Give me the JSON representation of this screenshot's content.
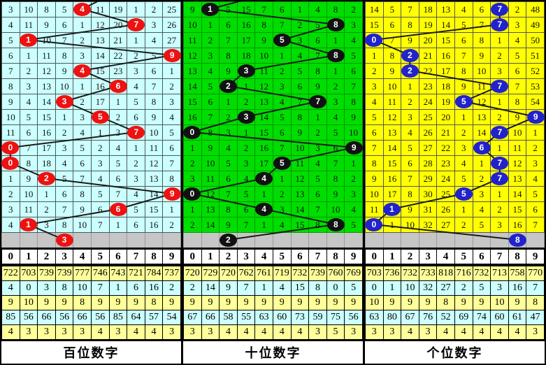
{
  "chart_data": {
    "type": "table",
    "title": "3D lottery digit trend chart (miss-count grid with drawn-digit circles)",
    "columns": [
      "0",
      "1",
      "2",
      "3",
      "4",
      "5",
      "6",
      "7",
      "8",
      "9"
    ],
    "line_color": "#1a1a1a",
    "gray_row_color": "#c6c6c6",
    "stats_row_colors": [
      "#FFFF99",
      "#CCFFFF",
      "#FFFF99",
      "#CCFFFF",
      "#FFFF99"
    ],
    "panels": [
      {
        "title": "百位数字",
        "cell_bg": "#CCFFFF",
        "grid_line": "#4d5a5a",
        "circle_color": "#ee1111",
        "top_entry": {
          "fx": 0.672,
          "fy": -0.05
        },
        "rows": [
          [
            "3",
            "10",
            "8",
            "5",
            null,
            "11",
            "19",
            "1",
            "2",
            "25"
          ],
          [
            "4",
            "11",
            "9",
            "6",
            "1",
            "12",
            "20",
            null,
            "3",
            "26"
          ],
          [
            "5",
            null,
            "10",
            "7",
            "2",
            "13",
            "21",
            "1",
            "4",
            "27"
          ],
          [
            "6",
            "1",
            "11",
            "8",
            "3",
            "14",
            "22",
            "2",
            "5",
            null
          ],
          [
            "7",
            "2",
            "12",
            "9",
            null,
            "15",
            "23",
            "3",
            "6",
            "1"
          ],
          [
            "8",
            "3",
            "13",
            "10",
            "1",
            "16",
            null,
            "4",
            "7",
            "2"
          ],
          [
            "9",
            "4",
            "14",
            null,
            "2",
            "17",
            "1",
            "5",
            "8",
            "3"
          ],
          [
            "10",
            "5",
            "15",
            "1",
            "3",
            null,
            "2",
            "6",
            "9",
            "4"
          ],
          [
            "11",
            "6",
            "16",
            "2",
            "4",
            "1",
            "3",
            null,
            "10",
            "5"
          ],
          [
            null,
            "7",
            "17",
            "3",
            "5",
            "2",
            "4",
            "1",
            "11",
            "6"
          ],
          [
            null,
            "8",
            "18",
            "4",
            "6",
            "3",
            "5",
            "2",
            "12",
            "7"
          ],
          [
            "1",
            "9",
            null,
            "5",
            "7",
            "4",
            "6",
            "3",
            "13",
            "8"
          ],
          [
            "2",
            "10",
            "1",
            "6",
            "8",
            "5",
            "7",
            "4",
            "14",
            null
          ],
          [
            "3",
            "11",
            "2",
            "7",
            "9",
            "6",
            null,
            "5",
            "15",
            "1"
          ],
          [
            "4",
            null,
            "3",
            "8",
            "10",
            "7",
            "1",
            "6",
            "16",
            "2"
          ]
        ],
        "circles": [
          {
            "row": 0,
            "col": 4,
            "label": "4"
          },
          {
            "row": 1,
            "col": 7,
            "label": "7"
          },
          {
            "row": 2,
            "col": 1,
            "label": "1"
          },
          {
            "row": 3,
            "col": 9,
            "label": "9"
          },
          {
            "row": 4,
            "col": 4,
            "label": "4"
          },
          {
            "row": 5,
            "col": 6,
            "label": "6"
          },
          {
            "row": 6,
            "col": 3,
            "label": "3"
          },
          {
            "row": 7,
            "col": 5,
            "label": "5"
          },
          {
            "row": 8,
            "col": 7,
            "label": "7"
          },
          {
            "row": 9,
            "col": 0,
            "label": "0"
          },
          {
            "row": 10,
            "col": 0,
            "label": "0"
          },
          {
            "row": 11,
            "col": 2,
            "label": "2"
          },
          {
            "row": 12,
            "col": 9,
            "label": "9"
          },
          {
            "row": 13,
            "col": 6,
            "label": "6"
          },
          {
            "row": 14,
            "col": 1,
            "label": "1"
          },
          {
            "row": 15,
            "col": 3,
            "label": "3"
          }
        ],
        "stats": [
          [
            "722",
            "703",
            "739",
            "739",
            "777",
            "746",
            "743",
            "721",
            "784",
            "737"
          ],
          [
            "4",
            "0",
            "3",
            "8",
            "10",
            "7",
            "1",
            "6",
            "16",
            "2"
          ],
          [
            "9",
            "10",
            "9",
            "9",
            "8",
            "9",
            "9",
            "9",
            "8",
            "9"
          ],
          [
            "85",
            "56",
            "66",
            "56",
            "66",
            "56",
            "85",
            "64",
            "57",
            "54"
          ],
          [
            "4",
            "3",
            "3",
            "3",
            "3",
            "4",
            "3",
            "4",
            "4",
            "3"
          ]
        ]
      },
      {
        "title": "十位数字",
        "cell_bg": "#00DD00",
        "grid_line": "#009900",
        "circle_color": "#111111",
        "top_entry": {
          "fx": 0.568,
          "fy": -0.05
        },
        "rows": [
          [
            "9",
            null,
            "5",
            "15",
            "7",
            "6",
            "1",
            "4",
            "8",
            "2"
          ],
          [
            "10",
            "1",
            "6",
            "16",
            "8",
            "7",
            "2",
            "5",
            null,
            "3"
          ],
          [
            "11",
            "2",
            "7",
            "17",
            "9",
            null,
            "3",
            "6",
            "1",
            "4"
          ],
          [
            "12",
            "3",
            "8",
            "18",
            "10",
            "1",
            "4",
            "7",
            null,
            "5"
          ],
          [
            "13",
            "4",
            "9",
            null,
            "11",
            "2",
            "5",
            "8",
            "1",
            "6"
          ],
          [
            "14",
            "5",
            null,
            "1",
            "12",
            "3",
            "6",
            "9",
            "2",
            "7"
          ],
          [
            "15",
            "6",
            "1",
            "2",
            "13",
            "4",
            "7",
            null,
            "3",
            "8"
          ],
          [
            "16",
            "7",
            "2",
            null,
            "14",
            "5",
            "8",
            "1",
            "4",
            "9"
          ],
          [
            null,
            "8",
            "3",
            "1",
            "15",
            "6",
            "9",
            "2",
            "5",
            "10"
          ],
          [
            "1",
            "9",
            "4",
            "2",
            "16",
            "7",
            "10",
            "3",
            "6",
            null
          ],
          [
            "2",
            "10",
            "5",
            "3",
            "17",
            null,
            "11",
            "4",
            "7",
            "1"
          ],
          [
            "3",
            "11",
            "6",
            "4",
            null,
            "1",
            "12",
            "5",
            "8",
            "2"
          ],
          [
            null,
            "12",
            "7",
            "5",
            "1",
            "2",
            "13",
            "6",
            "9",
            "3"
          ],
          [
            "1",
            "13",
            "8",
            "6",
            null,
            "3",
            "14",
            "7",
            "10",
            "4"
          ],
          [
            "2",
            "14",
            "9",
            "7",
            "1",
            "4",
            "15",
            "8",
            null,
            "5"
          ]
        ],
        "circles": [
          {
            "row": 0,
            "col": 1,
            "label": "1"
          },
          {
            "row": 1,
            "col": 8,
            "label": "8"
          },
          {
            "row": 2,
            "col": 5,
            "label": "5"
          },
          {
            "row": 3,
            "col": 8,
            "label": "8"
          },
          {
            "row": 4,
            "col": 3,
            "label": "3"
          },
          {
            "row": 5,
            "col": 2,
            "label": "2"
          },
          {
            "row": 6,
            "col": 7,
            "label": "7"
          },
          {
            "row": 7,
            "col": 3,
            "label": "3"
          },
          {
            "row": 8,
            "col": 0,
            "label": "0"
          },
          {
            "row": 9,
            "col": 9,
            "label": "9"
          },
          {
            "row": 10,
            "col": 5,
            "label": "5"
          },
          {
            "row": 11,
            "col": 4,
            "label": "4"
          },
          {
            "row": 12,
            "col": 0,
            "label": "0"
          },
          {
            "row": 13,
            "col": 4,
            "label": "4"
          },
          {
            "row": 14,
            "col": 8,
            "label": "8"
          },
          {
            "row": 15,
            "col": 2,
            "label": "2"
          }
        ],
        "stats": [
          [
            "720",
            "729",
            "720",
            "762",
            "761",
            "719",
            "732",
            "739",
            "760",
            "769"
          ],
          [
            "2",
            "14",
            "9",
            "7",
            "1",
            "4",
            "15",
            "8",
            "0",
            "5"
          ],
          [
            "9",
            "9",
            "9",
            "9",
            "9",
            "9",
            "9",
            "9",
            "9",
            "9"
          ],
          [
            "67",
            "66",
            "58",
            "55",
            "63",
            "60",
            "73",
            "59",
            "75",
            "56"
          ],
          [
            "3",
            "3",
            "4",
            "4",
            "4",
            "4",
            "4",
            "3",
            "5",
            "3"
          ]
        ]
      },
      {
        "title": "个位数字",
        "cell_bg": "#FFFF00",
        "grid_line": "#555555",
        "circle_color": "#2222cc",
        "top_entry": null,
        "rows": [
          [
            "14",
            "5",
            "7",
            "18",
            "13",
            "4",
            "6",
            null,
            "2",
            "48"
          ],
          [
            "15",
            "6",
            "8",
            "19",
            "14",
            "5",
            "7",
            null,
            "3",
            "49"
          ],
          [
            null,
            "7",
            "9",
            "20",
            "15",
            "6",
            "8",
            "1",
            "4",
            "50"
          ],
          [
            "1",
            "8",
            null,
            "21",
            "16",
            "7",
            "9",
            "2",
            "5",
            "51"
          ],
          [
            "2",
            "9",
            null,
            "22",
            "17",
            "8",
            "10",
            "3",
            "6",
            "52"
          ],
          [
            "3",
            "10",
            "1",
            "23",
            "18",
            "9",
            "11",
            null,
            "7",
            "53"
          ],
          [
            "4",
            "11",
            "2",
            "24",
            "19",
            null,
            "12",
            "1",
            "8",
            "54"
          ],
          [
            "5",
            "12",
            "3",
            "25",
            "20",
            "1",
            "13",
            "2",
            "9",
            null
          ],
          [
            "6",
            "13",
            "4",
            "26",
            "21",
            "2",
            "14",
            null,
            "10",
            "1"
          ],
          [
            "7",
            "14",
            "5",
            "27",
            "22",
            "3",
            null,
            "1",
            "11",
            "2"
          ],
          [
            "8",
            "15",
            "6",
            "28",
            "23",
            "4",
            "1",
            null,
            "12",
            "3"
          ],
          [
            "9",
            "16",
            "7",
            "29",
            "24",
            "5",
            "2",
            null,
            "13",
            "4"
          ],
          [
            "10",
            "17",
            "8",
            "30",
            "25",
            null,
            "3",
            "1",
            "14",
            "5"
          ],
          [
            "11",
            null,
            "9",
            "31",
            "26",
            "1",
            "4",
            "2",
            "15",
            "6"
          ],
          [
            null,
            "1",
            "10",
            "32",
            "27",
            "2",
            "5",
            "3",
            "16",
            "7"
          ]
        ],
        "circles": [
          {
            "row": 0,
            "col": 7,
            "label": "7"
          },
          {
            "row": 1,
            "col": 7,
            "label": "7"
          },
          {
            "row": 2,
            "col": 0,
            "label": "0"
          },
          {
            "row": 3,
            "col": 2,
            "label": "2"
          },
          {
            "row": 4,
            "col": 2,
            "label": "2"
          },
          {
            "row": 5,
            "col": 7,
            "label": "7"
          },
          {
            "row": 6,
            "col": 5,
            "label": "5"
          },
          {
            "row": 7,
            "col": 9,
            "label": "9"
          },
          {
            "row": 8,
            "col": 7,
            "label": "7"
          },
          {
            "row": 9,
            "col": 6,
            "label": "6"
          },
          {
            "row": 10,
            "col": 7,
            "label": "7"
          },
          {
            "row": 11,
            "col": 7,
            "label": "7"
          },
          {
            "row": 12,
            "col": 5,
            "label": "5"
          },
          {
            "row": 13,
            "col": 1,
            "label": "1"
          },
          {
            "row": 14,
            "col": 0,
            "label": "0"
          },
          {
            "row": 15,
            "col": 8,
            "label": "8"
          }
        ],
        "stats": [
          [
            "703",
            "736",
            "732",
            "733",
            "818",
            "716",
            "732",
            "713",
            "758",
            "770"
          ],
          [
            "0",
            "1",
            "10",
            "32",
            "27",
            "2",
            "5",
            "3",
            "16",
            "7"
          ],
          [
            "10",
            "9",
            "9",
            "9",
            "8",
            "9",
            "9",
            "10",
            "9",
            "8"
          ],
          [
            "63",
            "80",
            "67",
            "76",
            "52",
            "69",
            "74",
            "60",
            "61",
            "47"
          ],
          [
            "3",
            "3",
            "4",
            "3",
            "4",
            "4",
            "4",
            "4",
            "4",
            "3"
          ]
        ]
      }
    ]
  }
}
